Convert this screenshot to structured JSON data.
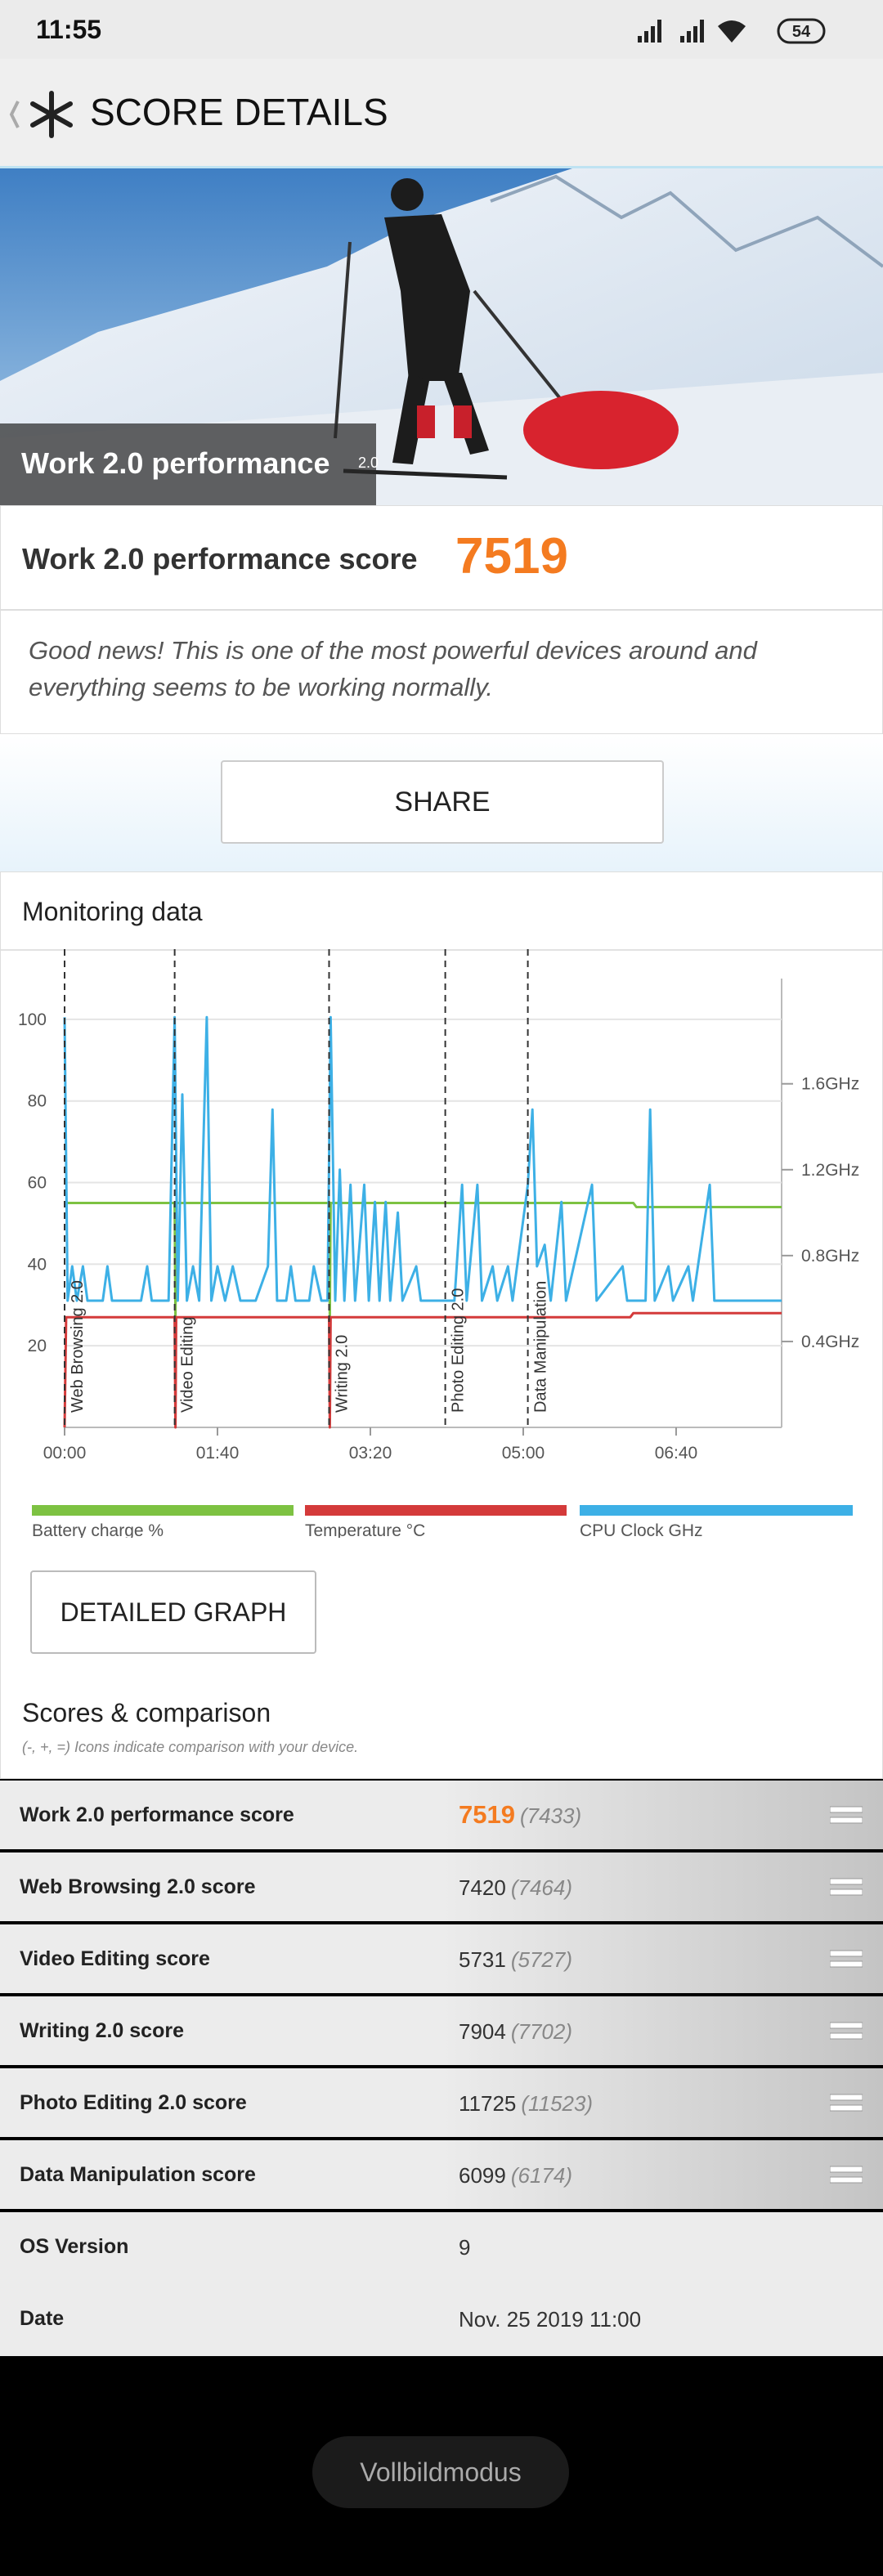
{
  "status_bar": {
    "time": "11:55",
    "battery": "54"
  },
  "header": {
    "title": "SCORE DETAILS"
  },
  "banner": {
    "title": "Work 2.0 performance",
    "badge": "2.0"
  },
  "score_card": {
    "label": "Work 2.0 performance score",
    "score": 7519
  },
  "description": "Good news! This is one of the most powerful devices around and everything seems to be working normally.",
  "share_button": "SHARE",
  "monitoring": {
    "title": "Monitoring data",
    "chart_data": {
      "type": "line",
      "xlim": [
        0,
        469
      ],
      "xticks": [
        {
          "value": 0,
          "label": "00:00"
        },
        {
          "value": 100,
          "label": "01:40"
        },
        {
          "value": 200,
          "label": "03:20"
        },
        {
          "value": 300,
          "label": "05:00"
        },
        {
          "value": 400,
          "label": "06:40"
        }
      ],
      "ylim": [
        0,
        110
      ],
      "yticks": [
        20,
        40,
        60,
        80,
        100
      ],
      "y2lim": [
        0,
        2.09
      ],
      "y2ticks": [
        {
          "value": 0.4,
          "label": "0.4GHz"
        },
        {
          "value": 0.8,
          "label": "0.8GHz"
        },
        {
          "value": 1.2,
          "label": "1.2GHz"
        },
        {
          "value": 1.6,
          "label": "1.6GHz"
        }
      ],
      "grid": true,
      "markers": [
        {
          "label": "Web Browsing 2.0",
          "x": 0
        },
        {
          "label": "Video Editing",
          "x": 72
        },
        {
          "label": "Writing 2.0",
          "x": 173
        },
        {
          "label": "Photo Editing 2.0",
          "x": 249
        },
        {
          "label": "Data Manipulation",
          "x": 303
        }
      ],
      "series": [
        {
          "name": "Battery charge %",
          "color": "#7dc242",
          "x": [
            0,
            72,
            72.5,
            73,
            173,
            173.5,
            174,
            372,
            374,
            469
          ],
          "values": [
            55,
            55,
            27,
            55,
            55,
            27,
            55,
            55,
            54,
            54
          ]
        },
        {
          "name": "Temperature °C",
          "color": "#d43a3a",
          "x": [
            0,
            1,
            72,
            72.5,
            73,
            173,
            173.5,
            174,
            370,
            372,
            469
          ],
          "values": [
            0,
            27,
            27,
            0,
            27,
            27,
            0,
            27,
            27,
            28,
            28
          ]
        },
        {
          "name": "CPU Clock GHz",
          "color": "#3db0e6",
          "axis": "y2",
          "x": [
            0,
            2,
            5,
            8,
            12,
            15,
            25,
            28,
            31,
            50,
            54,
            57,
            68,
            72,
            74,
            77,
            80,
            84,
            88,
            93,
            96,
            100,
            105,
            110,
            115,
            125,
            133,
            136,
            139,
            145,
            148,
            151,
            160,
            163,
            168,
            172,
            174,
            177,
            180,
            183,
            187,
            190,
            196,
            199,
            203,
            206,
            210,
            213,
            218,
            221,
            230,
            233,
            249,
            255,
            260,
            263,
            270,
            273,
            280,
            283,
            290,
            293,
            303,
            306,
            309,
            314,
            318,
            325,
            328,
            345,
            348,
            365,
            368,
            380,
            383,
            386,
            395,
            398,
            408,
            411,
            422,
            425,
            469
          ],
          "values": [
            1.91,
            0.59,
            0.75,
            0.59,
            0.75,
            0.59,
            0.59,
            0.75,
            0.59,
            0.59,
            0.75,
            0.59,
            0.59,
            1.91,
            0.59,
            1.55,
            0.59,
            0.75,
            0.59,
            1.91,
            0.59,
            0.75,
            0.59,
            0.75,
            0.59,
            0.59,
            0.75,
            1.48,
            0.59,
            0.59,
            0.75,
            0.59,
            0.59,
            0.75,
            0.59,
            0.59,
            1.91,
            0.59,
            1.2,
            0.59,
            1.13,
            0.59,
            1.13,
            0.59,
            1.05,
            0.59,
            1.05,
            0.59,
            1.0,
            0.59,
            0.75,
            0.59,
            0.59,
            0.59,
            1.13,
            0.59,
            1.13,
            0.59,
            0.75,
            0.59,
            0.75,
            0.59,
            1.13,
            1.48,
            0.75,
            0.85,
            0.59,
            1.05,
            0.59,
            1.13,
            0.59,
            0.75,
            0.59,
            0.59,
            1.48,
            0.59,
            0.75,
            0.59,
            0.75,
            0.59,
            1.13,
            0.59,
            0.59
          ]
        }
      ]
    }
  },
  "detailed_graph_button": "DETAILED GRAPH",
  "scores": {
    "title": "Scores & comparison",
    "note": "(-, +, =) Icons indicate comparison with your device.",
    "rows": [
      {
        "label": "Work 2.0 performance score",
        "score": 7519,
        "comparison": "(7433)"
      },
      {
        "label": "Web Browsing 2.0 score",
        "score": 7420,
        "comparison": "(7464)"
      },
      {
        "label": "Video Editing score",
        "score": 5731,
        "comparison": "(5727)"
      },
      {
        "label": "Writing 2.0 score",
        "score": 7904,
        "comparison": "(7702)"
      },
      {
        "label": "Photo Editing 2.0 score",
        "score": 11725,
        "comparison": "(11523)"
      },
      {
        "label": "Data Manipulation score",
        "score": 6099,
        "comparison": "(6174)"
      }
    ]
  },
  "info": [
    {
      "label": "OS Version",
      "value": "9"
    },
    {
      "label": "Date",
      "value": "Nov. 25 2019 11:00"
    }
  ],
  "footer_button": "Vollbildmodus"
}
